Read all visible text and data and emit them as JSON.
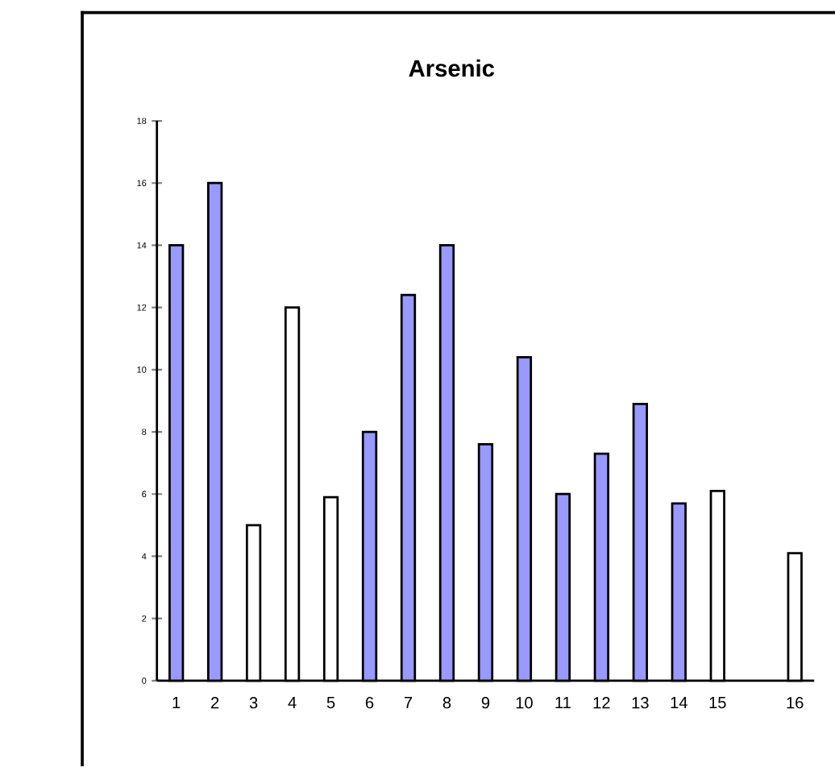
{
  "chart_data": {
    "type": "bar",
    "title": "Arsenic",
    "categories": [
      "1",
      "2",
      "3",
      "4",
      "5",
      "6",
      "7",
      "8",
      "9",
      "10",
      "11",
      "12",
      "13",
      "14",
      "15",
      null,
      "16"
    ],
    "values": [
      14,
      16,
      5,
      12,
      5.9,
      8,
      12.4,
      14,
      7.6,
      10.4,
      6,
      7.3,
      8.9,
      5.7,
      6.1,
      null,
      4.1
    ],
    "colors": [
      "#9999ff",
      "#9999ff",
      "#ffffff",
      "#ffffff",
      "#ffffff",
      "#9999ff",
      "#9999ff",
      "#9999ff",
      "#9999ff",
      "#9999ff",
      "#9999ff",
      "#9999ff",
      "#9999ff",
      "#9999ff",
      "#ffffff",
      "#ffffff",
      "#ffffff"
    ],
    "ylim": [
      0,
      18
    ],
    "yticks": [
      0,
      2,
      4,
      6,
      8,
      10,
      12,
      14,
      16,
      18
    ],
    "grid": false
  }
}
